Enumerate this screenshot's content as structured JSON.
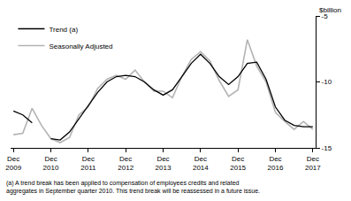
{
  "chart_data": {
    "type": "line",
    "y_label": "$billion",
    "footnote": [
      "(a) A trend break has been applied to compensation of employees credits and related",
      "aggregates in September quarter 2010. This trend break will be reassessed in a future issue."
    ],
    "categories": [
      "Dec 2009",
      null,
      null,
      null,
      "Dec 2010",
      null,
      null,
      null,
      "Dec 2011",
      null,
      null,
      null,
      "Dec 2012",
      null,
      null,
      null,
      "Dec 2013",
      null,
      null,
      null,
      "Dec 2014",
      null,
      null,
      null,
      "Dec 2015",
      null,
      null,
      null,
      "Dec 2016",
      null,
      null,
      null,
      "Dec 2017"
    ],
    "series": [
      {
        "name": "Trend (a)",
        "color": "#000000",
        "values": [
          -12.2,
          -12.5,
          -13.1,
          null,
          -14.3,
          -14.4,
          -13.8,
          -12.8,
          -11.8,
          -10.8,
          -10.0,
          -9.6,
          -9.5,
          -9.6,
          -10.0,
          -10.6,
          -11.0,
          -10.6,
          -9.6,
          -8.6,
          -7.9,
          -8.6,
          -9.6,
          -10.2,
          -9.6,
          -8.6,
          -8.5,
          -9.8,
          -11.9,
          -12.9,
          -13.3,
          -13.4,
          -13.4
        ]
      },
      {
        "name": "Seasonally Adjusted",
        "color": "#b3b3b3",
        "values": [
          -14.0,
          -13.9,
          -12.0,
          -13.3,
          -14.3,
          -14.6,
          -14.2,
          -12.5,
          -11.9,
          -10.5,
          -9.8,
          -9.5,
          -9.8,
          -9.1,
          -10.0,
          -10.7,
          -10.7,
          -11.2,
          -9.6,
          -8.3,
          -7.7,
          -8.4,
          -9.9,
          -11.1,
          -10.6,
          -6.8,
          -8.8,
          -10.0,
          -12.3,
          -13.0,
          -13.6,
          -13.0,
          -13.6
        ]
      }
    ],
    "ylim": [
      -15,
      -5
    ],
    "yticks": [
      -5,
      -10,
      -15
    ],
    "grid": false,
    "legend": "top-left"
  }
}
